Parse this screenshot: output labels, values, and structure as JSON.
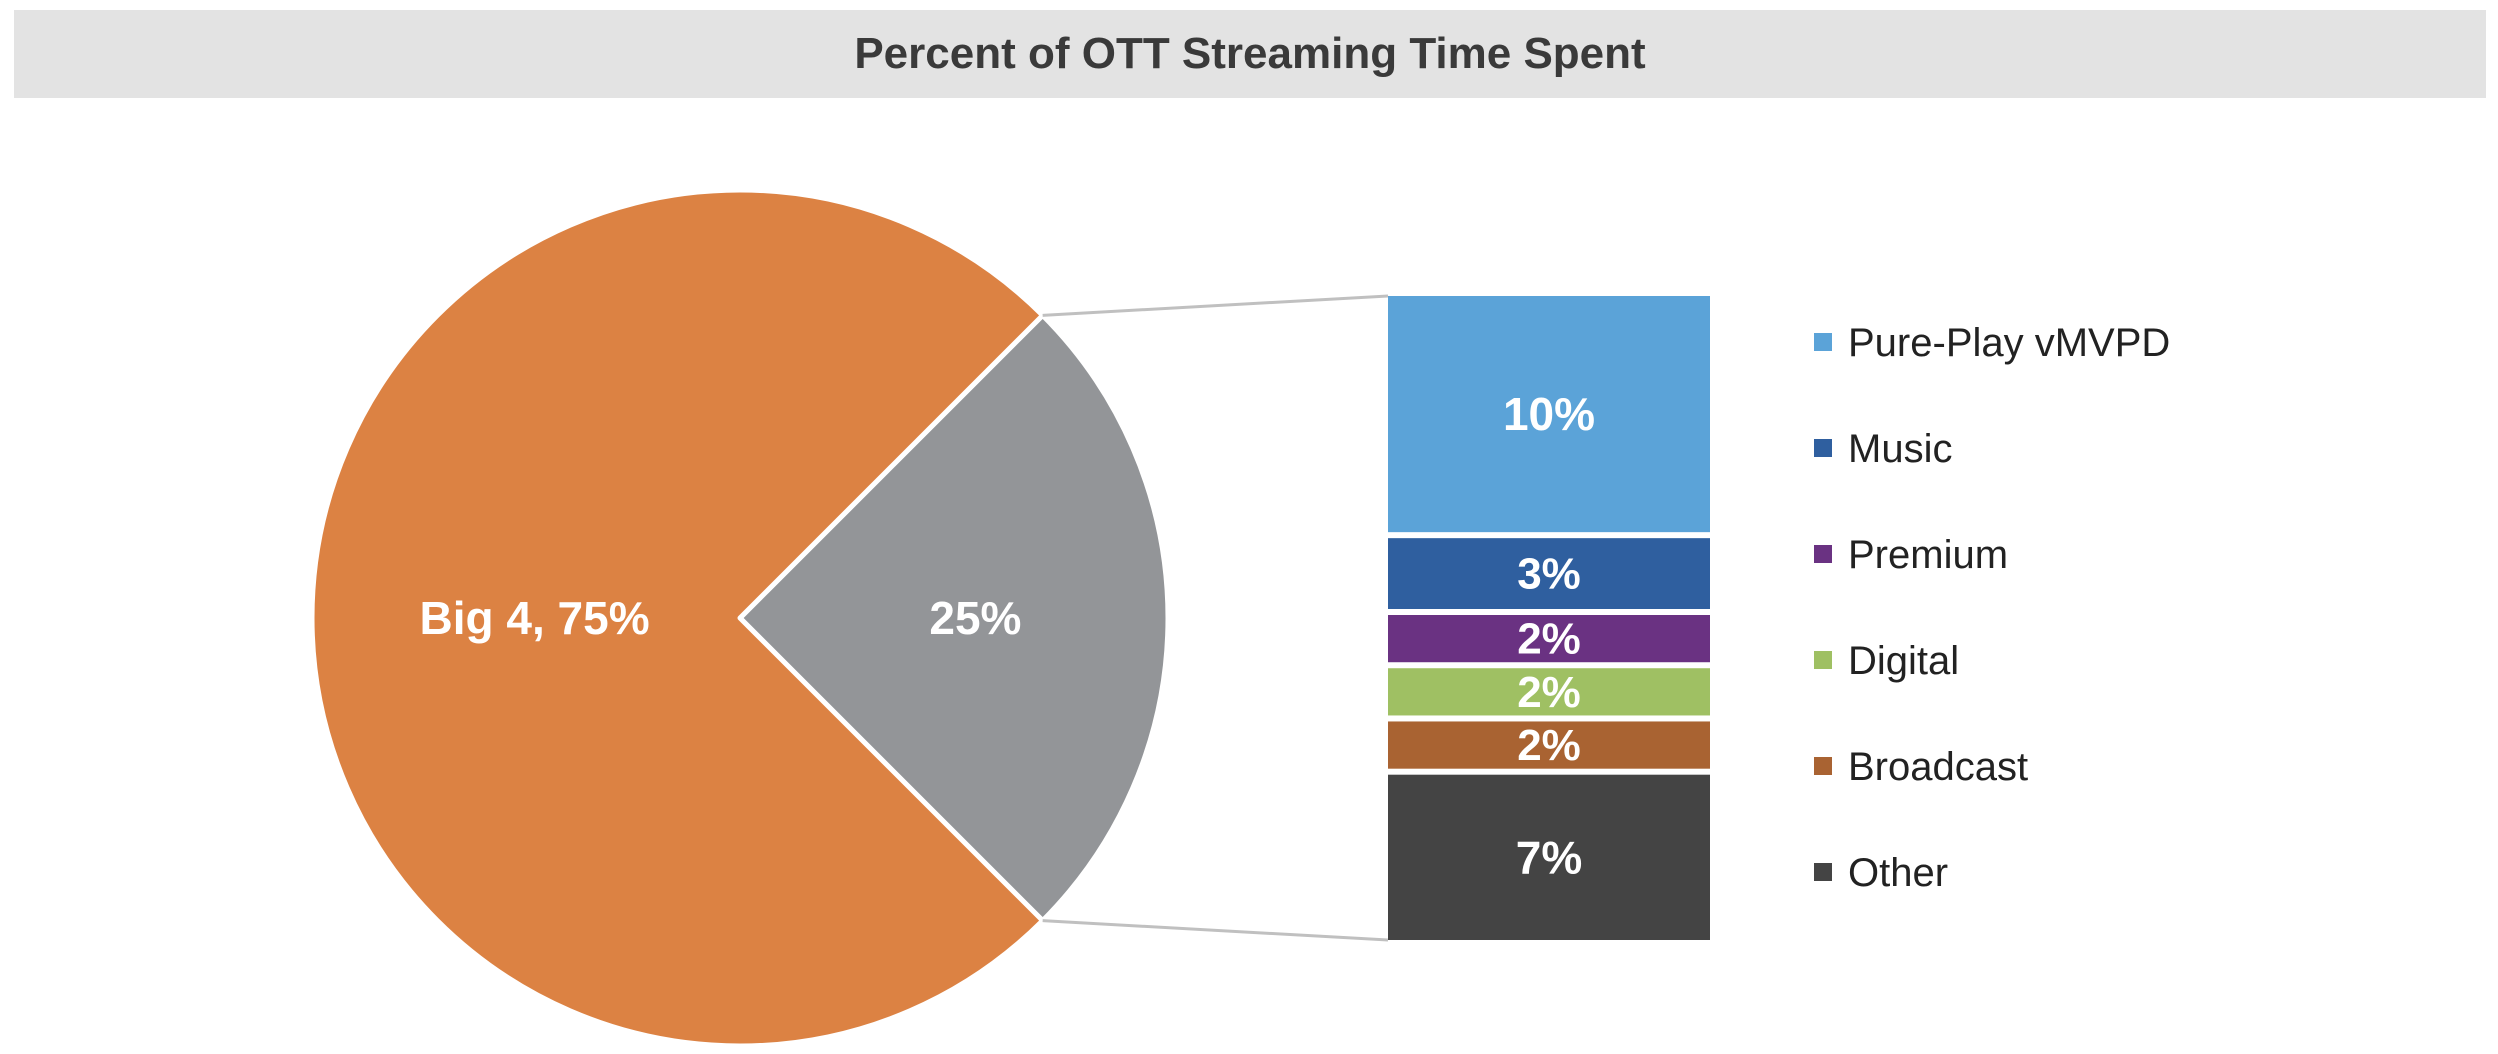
{
  "chart_data": {
    "type": "bar-of-pie",
    "title": "Percent of OTT Streaming Time Spent",
    "pie": {
      "slices": [
        {
          "name": "Big 4",
          "value": 75,
          "label": "Big 4, 75%",
          "color": "#dc8243"
        },
        {
          "name": "",
          "value": 25,
          "label": "25%",
          "color": "#939598"
        }
      ]
    },
    "bar": {
      "segments": [
        {
          "name": "Pure-Play vMVPD",
          "value": 10,
          "label": "10%",
          "color": "#5ba3d8"
        },
        {
          "name": "Music",
          "value": 3,
          "label": "3%",
          "color": "#2f5f9f"
        },
        {
          "name": "Premium",
          "value": 2,
          "label": "2%",
          "color": "#6a3282"
        },
        {
          "name": "Digital",
          "value": 2,
          "label": "2%",
          "color": "#9fc063"
        },
        {
          "name": "Broadcast",
          "value": 2,
          "label": "2%",
          "color": "#a96332"
        },
        {
          "name": "Other",
          "value": 7,
          "label": "7%",
          "color": "#444444"
        }
      ]
    },
    "legend": {
      "position": "right"
    }
  }
}
